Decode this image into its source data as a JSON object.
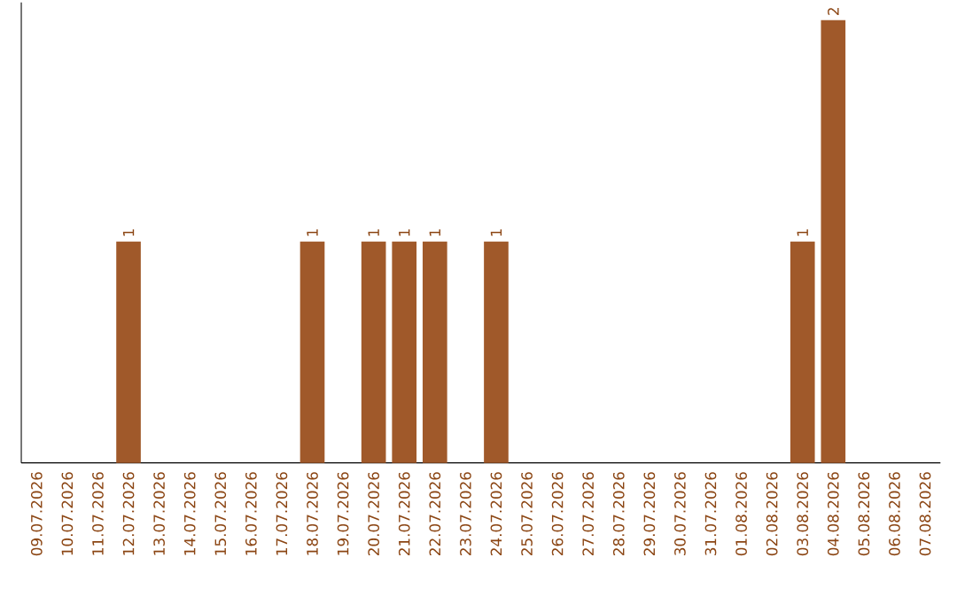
{
  "chart_data": {
    "type": "bar",
    "categories": [
      "09.07.2026",
      "10.07.2026",
      "11.07.2026",
      "12.07.2026",
      "13.07.2026",
      "14.07.2026",
      "15.07.2026",
      "16.07.2026",
      "17.07.2026",
      "18.07.2026",
      "19.07.2026",
      "20.07.2026",
      "21.07.2026",
      "22.07.2026",
      "23.07.2026",
      "24.07.2026",
      "25.07.2026",
      "26.07.2026",
      "27.07.2026",
      "28.07.2026",
      "29.07.2026",
      "30.07.2026",
      "31.07.2026",
      "01.08.2026",
      "02.08.2026",
      "03.08.2026",
      "04.08.2026",
      "05.08.2026",
      "06.08.2026",
      "07.08.2026"
    ],
    "values": [
      0,
      0,
      0,
      1,
      0,
      0,
      0,
      0,
      0,
      1,
      0,
      1,
      1,
      1,
      0,
      1,
      0,
      0,
      0,
      0,
      0,
      0,
      0,
      0,
      0,
      1,
      2,
      0,
      0,
      0
    ],
    "value_labels": [
      null,
      null,
      null,
      "1",
      null,
      null,
      null,
      null,
      null,
      "1",
      null,
      "1",
      "1",
      "1",
      null,
      "1",
      null,
      null,
      null,
      null,
      null,
      null,
      null,
      null,
      null,
      "1",
      "2",
      null,
      null,
      null
    ],
    "color": "#a0592a",
    "ylim": [
      0,
      2.08
    ],
    "tick_labels": "x"
  }
}
